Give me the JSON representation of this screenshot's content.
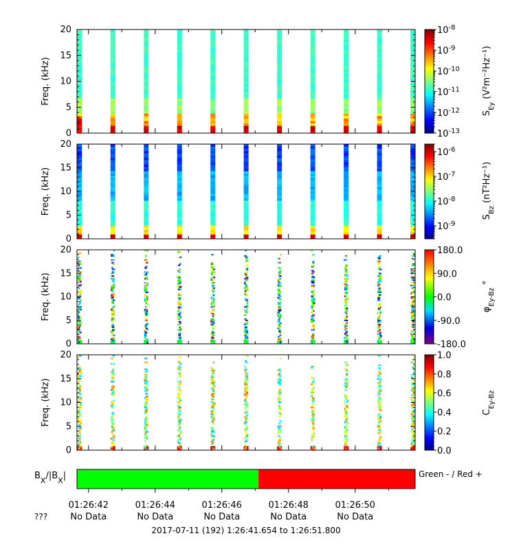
{
  "chart_data": [
    {
      "type": "heatmap",
      "ylabel": "Freq. (kHz)",
      "ylim": [
        0,
        20
      ],
      "yticks": [
        "0",
        "5",
        "10",
        "15",
        "20"
      ],
      "colorbar": {
        "label_main": "S",
        "label_sub": "Ey",
        "label_units": " (V²m⁻²Hz⁻¹)",
        "scale": "log",
        "range": [
          1e-13,
          1e-08
        ],
        "ticks": [
          {
            "base": "10",
            "exp": "-8",
            "value": 1e-08
          },
          {
            "base": "10",
            "exp": "-9",
            "value": 1e-09
          },
          {
            "base": "10",
            "exp": "-10",
            "value": 1e-10
          },
          {
            "base": "10",
            "exp": "-11",
            "value": 1e-11
          },
          {
            "base": "10",
            "exp": "-12",
            "value": 1e-12
          },
          {
            "base": "10",
            "exp": "-13",
            "value": 1e-13
          }
        ]
      }
    },
    {
      "type": "heatmap",
      "ylabel": "Freq. (kHz)",
      "ylim": [
        0,
        20
      ],
      "yticks": [
        "0",
        "5",
        "10",
        "15",
        "20"
      ],
      "colorbar": {
        "label_main": "S",
        "label_sub": "Bz",
        "label_units": " (nT²Hz⁻¹)",
        "scale": "log",
        "range": [
          3e-10,
          2e-06
        ],
        "ticks": [
          {
            "base": "10",
            "exp": "-6",
            "value": 1e-06
          },
          {
            "base": "10",
            "exp": "-7",
            "value": 1e-07
          },
          {
            "base": "10",
            "exp": "-8",
            "value": 1e-08
          },
          {
            "base": "10",
            "exp": "-9",
            "value": 1e-09
          }
        ]
      }
    },
    {
      "type": "heatmap",
      "ylabel": "Freq. (kHz)",
      "ylim": [
        0,
        20
      ],
      "yticks": [
        "0",
        "5",
        "10",
        "15",
        "20"
      ],
      "colorbar": {
        "label_main": "φ",
        "label_sub": "Ey-Bz",
        "label_units": " °",
        "scale": "linear",
        "range": [
          -180,
          180
        ],
        "ticks": [
          {
            "text": "180.0",
            "value": 180
          },
          {
            "text": "90.0",
            "value": 90
          },
          {
            "text": "0.0",
            "value": 0
          },
          {
            "text": "-90.0",
            "value": -90
          },
          {
            "text": "-180.0",
            "value": -180
          }
        ]
      }
    },
    {
      "type": "heatmap",
      "ylabel": "Freq. (kHz)",
      "ylim": [
        0,
        20
      ],
      "yticks": [
        "0",
        "5",
        "10",
        "15",
        "20"
      ],
      "colorbar": {
        "label_main": "C",
        "label_sub": "Ey-Bz",
        "label_units": "",
        "scale": "linear",
        "range": [
          0,
          1
        ],
        "ticks": [
          {
            "text": "1.0",
            "value": 1.0
          },
          {
            "text": "0.8",
            "value": 0.8
          },
          {
            "text": "0.6",
            "value": 0.6
          },
          {
            "text": "0.4",
            "value": 0.4
          },
          {
            "text": "0.2",
            "value": 0.2
          },
          {
            "text": "0.0",
            "value": 0.0
          }
        ]
      }
    }
  ],
  "bar": {
    "label_b": "B",
    "label_sub1": "X",
    "label_mid": "/|B",
    "label_sub2": "X",
    "label_end": "|",
    "legend": "Green - / Red +",
    "split_time_s": 47.1,
    "color_neg": "#00ff00",
    "color_pos": "#ff0000"
  },
  "time_axis": {
    "start_s": 41.654,
    "end_s": 51.8,
    "tick_times_s": [
      42,
      44,
      46,
      48,
      50
    ],
    "tick_labels": [
      "01:26:42",
      "01:26:44",
      "01:26:46",
      "01:26:48",
      "01:26:50"
    ],
    "minor_step_s": 1,
    "row_label": "???",
    "row_values": [
      "No Data",
      "No Data",
      "No Data",
      "No Data",
      "No Data"
    ],
    "range_text": "2017-07-11 (192) 1:26:41.654 to 1:26:51.800"
  },
  "burst_times_s": [
    41.73,
    42.73,
    43.73,
    44.73,
    45.73,
    46.73,
    47.73,
    48.73,
    49.73,
    50.73,
    51.73
  ]
}
